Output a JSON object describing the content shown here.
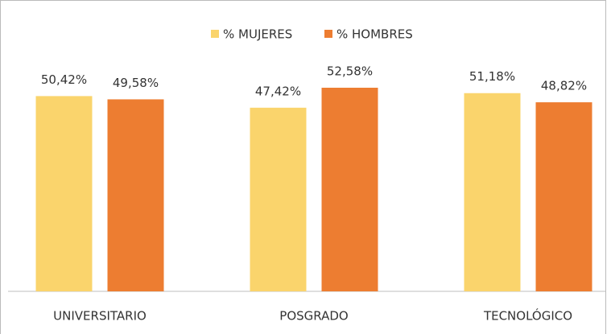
{
  "chart_data": {
    "type": "bar",
    "categories": [
      "UNIVERSITARIO",
      "POSGRADO",
      "TECNOLÓGICO"
    ],
    "series": [
      {
        "name": "% MUJERES",
        "color": "#FAD46C",
        "values": [
          50.42,
          47.42,
          51.18
        ],
        "value_labels": [
          "50,42%",
          "47,42%",
          "51,18%"
        ]
      },
      {
        "name": "% HOMBRES",
        "color": "#ED7D31",
        "values": [
          49.58,
          52.58,
          48.82
        ],
        "value_labels": [
          "49,58%",
          "52,58%",
          "48,82%"
        ]
      }
    ],
    "legend": "top"
  }
}
